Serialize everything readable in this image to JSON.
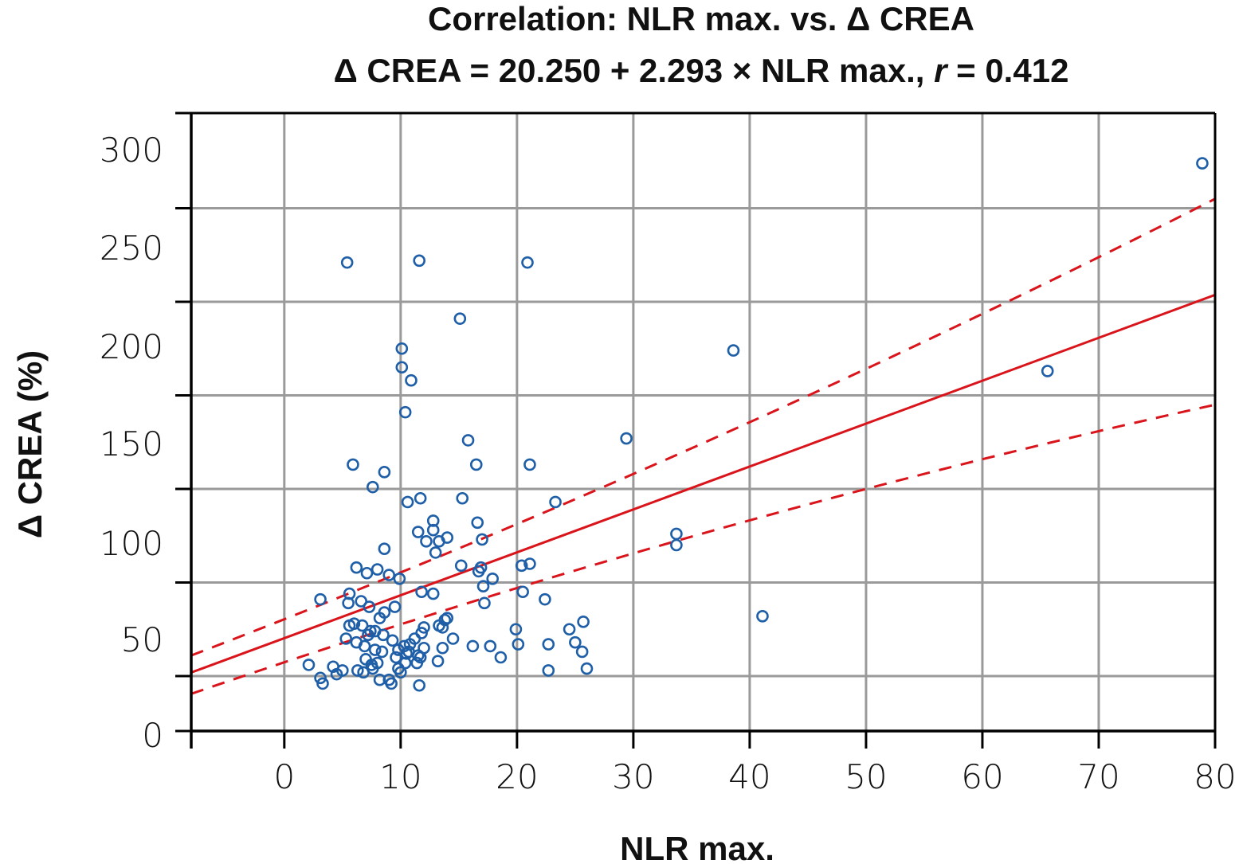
{
  "chart_data": {
    "type": "scatter",
    "title": "Correlation: NLR max. vs. Δ CREA",
    "subtitle_parts": [
      "Δ CREA = 20.250 + 2.293 × NLR max., ",
      "r",
      " = 0.412"
    ],
    "xlabel": "NLR max.",
    "ylabel": "Δ CREA (%)",
    "xlim": [
      -8,
      80
    ],
    "ylim": [
      -29,
      300
    ],
    "x_ticks": [
      0,
      10,
      20,
      30,
      40,
      50,
      60,
      70,
      80
    ],
    "y_ticks": [
      0,
      50,
      100,
      150,
      200,
      250,
      300
    ],
    "grid": true,
    "regression": {
      "intercept": 20.25,
      "slope": 2.293,
      "r": 0.412
    },
    "confidence_band": {
      "upper": [
        [
          -8,
          11.0
        ],
        [
          80,
          255.0
        ]
      ],
      "lower": [
        [
          -8,
          -9.5
        ],
        [
          80,
          145.0
        ]
      ]
    },
    "colors": {
      "points": "#1f5fa8",
      "regression": "#d9141b",
      "grid": "#9a9a9a",
      "axis": "#000000"
    },
    "points": [
      [
        78.9,
        274
      ],
      [
        65.6,
        163
      ],
      [
        38.6,
        174
      ],
      [
        41.1,
        32
      ],
      [
        33.7,
        76
      ],
      [
        33.7,
        70
      ],
      [
        29.4,
        127
      ],
      [
        5.4,
        221
      ],
      [
        11.6,
        222
      ],
      [
        20.9,
        221
      ],
      [
        15.1,
        191
      ],
      [
        10.1,
        175
      ],
      [
        10.1,
        165
      ],
      [
        10.9,
        158
      ],
      [
        10.4,
        141
      ],
      [
        15.8,
        126
      ],
      [
        16.5,
        113
      ],
      [
        21.1,
        113
      ],
      [
        5.9,
        113
      ],
      [
        8.6,
        109
      ],
      [
        7.6,
        101
      ],
      [
        10.6,
        93
      ],
      [
        11.7,
        95
      ],
      [
        15.3,
        95
      ],
      [
        23.3,
        93
      ],
      [
        11.5,
        77
      ],
      [
        12.8,
        83
      ],
      [
        12.8,
        78
      ],
      [
        13.3,
        72
      ],
      [
        12.2,
        72
      ],
      [
        13.0,
        66
      ],
      [
        14.0,
        74
      ],
      [
        16.6,
        82
      ],
      [
        17.0,
        73
      ],
      [
        8.6,
        68
      ],
      [
        6.2,
        58
      ],
      [
        7.1,
        55
      ],
      [
        8.0,
        57
      ],
      [
        9.0,
        54
      ],
      [
        9.9,
        52
      ],
      [
        15.2,
        59
      ],
      [
        16.7,
        56
      ],
      [
        16.9,
        58
      ],
      [
        20.4,
        59
      ],
      [
        21.1,
        60
      ],
      [
        17.1,
        48
      ],
      [
        17.9,
        52
      ],
      [
        20.5,
        45
      ],
      [
        3.1,
        41
      ],
      [
        5.6,
        44
      ],
      [
        6.6,
        40
      ],
      [
        7.3,
        37
      ],
      [
        9.5,
        37
      ],
      [
        11.8,
        45
      ],
      [
        12.8,
        44
      ],
      [
        17.2,
        39
      ],
      [
        22.4,
        41
      ],
      [
        5.5,
        39
      ],
      [
        5.6,
        27
      ],
      [
        6.0,
        28
      ],
      [
        6.7,
        27
      ],
      [
        7.4,
        24
      ],
      [
        8.2,
        31
      ],
      [
        8.6,
        34
      ],
      [
        5.3,
        20
      ],
      [
        6.2,
        18
      ],
      [
        7.2,
        22
      ],
      [
        7.8,
        24
      ],
      [
        8.5,
        22
      ],
      [
        9.3,
        19
      ],
      [
        6.9,
        16
      ],
      [
        7.8,
        14
      ],
      [
        8.4,
        13
      ],
      [
        9.8,
        14
      ],
      [
        10.3,
        16
      ],
      [
        10.8,
        17
      ],
      [
        11.2,
        20
      ],
      [
        7.0,
        9
      ],
      [
        7.5,
        6
      ],
      [
        8.0,
        7
      ],
      [
        9.6,
        10
      ],
      [
        10.5,
        12
      ],
      [
        11.5,
        11
      ],
      [
        12.0,
        15
      ],
      [
        11.8,
        23
      ],
      [
        13.6,
        26
      ],
      [
        13.8,
        30
      ],
      [
        14.0,
        31
      ],
      [
        13.3,
        27
      ],
      [
        14.5,
        20
      ],
      [
        12.0,
        26
      ],
      [
        5.0,
        3
      ],
      [
        4.5,
        1
      ],
      [
        6.3,
        3
      ],
      [
        6.8,
        2
      ],
      [
        7.6,
        4
      ],
      [
        8.2,
        -2
      ],
      [
        9.0,
        -2
      ],
      [
        3.1,
        -1
      ],
      [
        3.3,
        -4
      ],
      [
        2.1,
        6
      ],
      [
        4.2,
        5
      ],
      [
        9.2,
        -4
      ],
      [
        9.8,
        4
      ],
      [
        10.0,
        2
      ],
      [
        10.4,
        7
      ],
      [
        11.4,
        7
      ],
      [
        11.7,
        10
      ],
      [
        10.7,
        13
      ],
      [
        11.6,
        -5
      ],
      [
        13.2,
        8
      ],
      [
        13.6,
        15
      ],
      [
        16.2,
        16
      ],
      [
        17.7,
        16
      ],
      [
        18.6,
        10
      ],
      [
        20.1,
        17
      ],
      [
        19.9,
        25
      ],
      [
        22.7,
        17
      ],
      [
        22.7,
        3
      ],
      [
        24.5,
        25
      ],
      [
        25.0,
        18
      ],
      [
        25.7,
        29
      ],
      [
        25.6,
        13
      ],
      [
        26.0,
        4
      ]
    ]
  }
}
